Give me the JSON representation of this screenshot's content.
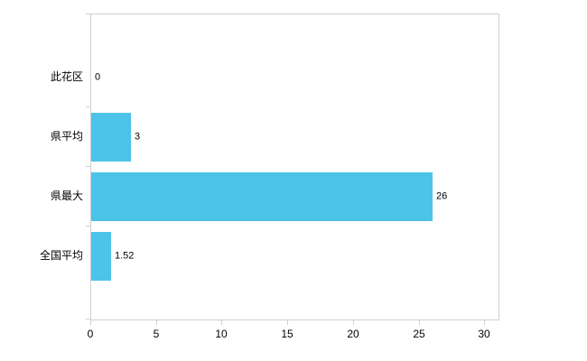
{
  "chart_data": {
    "type": "bar",
    "orientation": "horizontal",
    "title": "",
    "xlabel": "",
    "ylabel": "",
    "categories": [
      "此花区",
      "県平均",
      "県最大",
      "全国平均"
    ],
    "values": [
      0,
      3,
      26,
      1.52
    ],
    "value_labels": [
      "0",
      "3",
      "26",
      "1.52"
    ],
    "x_ticks": [
      "0",
      "5",
      "10",
      "15",
      "20",
      "25",
      "30"
    ],
    "x_tick_values": [
      0,
      5,
      10,
      15,
      20,
      25,
      30
    ],
    "xlim": [
      0,
      31
    ],
    "grid": false,
    "legend": false,
    "bar_color": "#4cc3e8",
    "axis_color": "#cfcfcf",
    "text_color": "#000000",
    "background": "#ffffff"
  }
}
